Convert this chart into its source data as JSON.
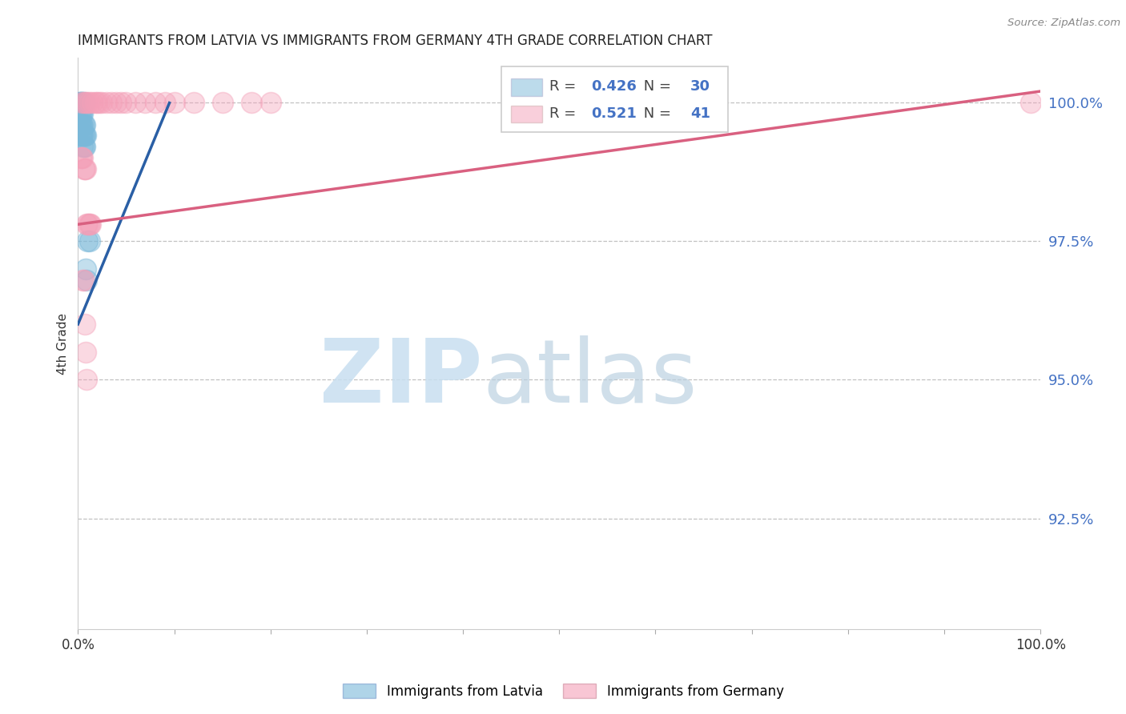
{
  "title": "IMMIGRANTS FROM LATVIA VS IMMIGRANTS FROM GERMANY 4TH GRADE CORRELATION CHART",
  "source": "Source: ZipAtlas.com",
  "ylabel": "4th Grade",
  "xlim": [
    0.0,
    1.0
  ],
  "ylim": [
    0.905,
    1.008
  ],
  "yticks": [
    0.925,
    0.95,
    0.975,
    1.0
  ],
  "ytick_labels": [
    "92.5%",
    "95.0%",
    "97.5%",
    "100.0%"
  ],
  "xticks": [
    0.0,
    0.1,
    0.2,
    0.3,
    0.4,
    0.5,
    0.6,
    0.7,
    0.8,
    0.9,
    1.0
  ],
  "xtick_labels": [
    "0.0%",
    "",
    "",
    "",
    "",
    "",
    "",
    "",
    "",
    "",
    "100.0%"
  ],
  "legend_R1": "0.426",
  "legend_N1": "30",
  "legend_R2": "0.521",
  "legend_N2": "41",
  "blue_color": "#7ab8d9",
  "pink_color": "#f4a0b8",
  "blue_line_color": "#2a5fa5",
  "pink_line_color": "#d96080",
  "blue_scatter_x": [
    0.001,
    0.002,
    0.003,
    0.004,
    0.005,
    0.006,
    0.002,
    0.003,
    0.004,
    0.005,
    0.001,
    0.002,
    0.003,
    0.004,
    0.005,
    0.006,
    0.007,
    0.003,
    0.004,
    0.005,
    0.006,
    0.007,
    0.008,
    0.005,
    0.006,
    0.007,
    0.01,
    0.012,
    0.008,
    0.009
  ],
  "blue_scatter_y": [
    1.0,
    1.0,
    1.0,
    1.0,
    1.0,
    1.0,
    0.998,
    0.998,
    0.998,
    0.998,
    0.996,
    0.996,
    0.996,
    0.996,
    0.996,
    0.996,
    0.996,
    0.994,
    0.994,
    0.994,
    0.994,
    0.994,
    0.994,
    0.992,
    0.992,
    0.992,
    0.975,
    0.975,
    0.97,
    0.968
  ],
  "pink_scatter_x": [
    0.004,
    0.006,
    0.008,
    0.01,
    0.012,
    0.015,
    0.018,
    0.02,
    0.022,
    0.025,
    0.03,
    0.035,
    0.04,
    0.045,
    0.05,
    0.06,
    0.07,
    0.08,
    0.09,
    0.1,
    0.12,
    0.15,
    0.18,
    0.2,
    0.003,
    0.004,
    0.005,
    0.006,
    0.007,
    0.008,
    0.009,
    0.01,
    0.011,
    0.012,
    0.013,
    0.005,
    0.006,
    0.007,
    0.008,
    0.009,
    0.99
  ],
  "pink_scatter_y": [
    1.0,
    1.0,
    1.0,
    1.0,
    1.0,
    1.0,
    1.0,
    1.0,
    1.0,
    1.0,
    1.0,
    1.0,
    1.0,
    1.0,
    1.0,
    1.0,
    1.0,
    1.0,
    1.0,
    1.0,
    1.0,
    1.0,
    1.0,
    1.0,
    0.99,
    0.99,
    0.99,
    0.988,
    0.988,
    0.988,
    0.978,
    0.978,
    0.978,
    0.978,
    0.978,
    0.968,
    0.968,
    0.96,
    0.955,
    0.95,
    1.0
  ],
  "blue_line_x": [
    0.0,
    0.095
  ],
  "blue_line_y_intercept": 0.96,
  "blue_line_slope": 0.42,
  "pink_line_x": [
    0.0,
    1.0
  ],
  "pink_line_y_start": 0.978,
  "pink_line_y_end": 1.002
}
